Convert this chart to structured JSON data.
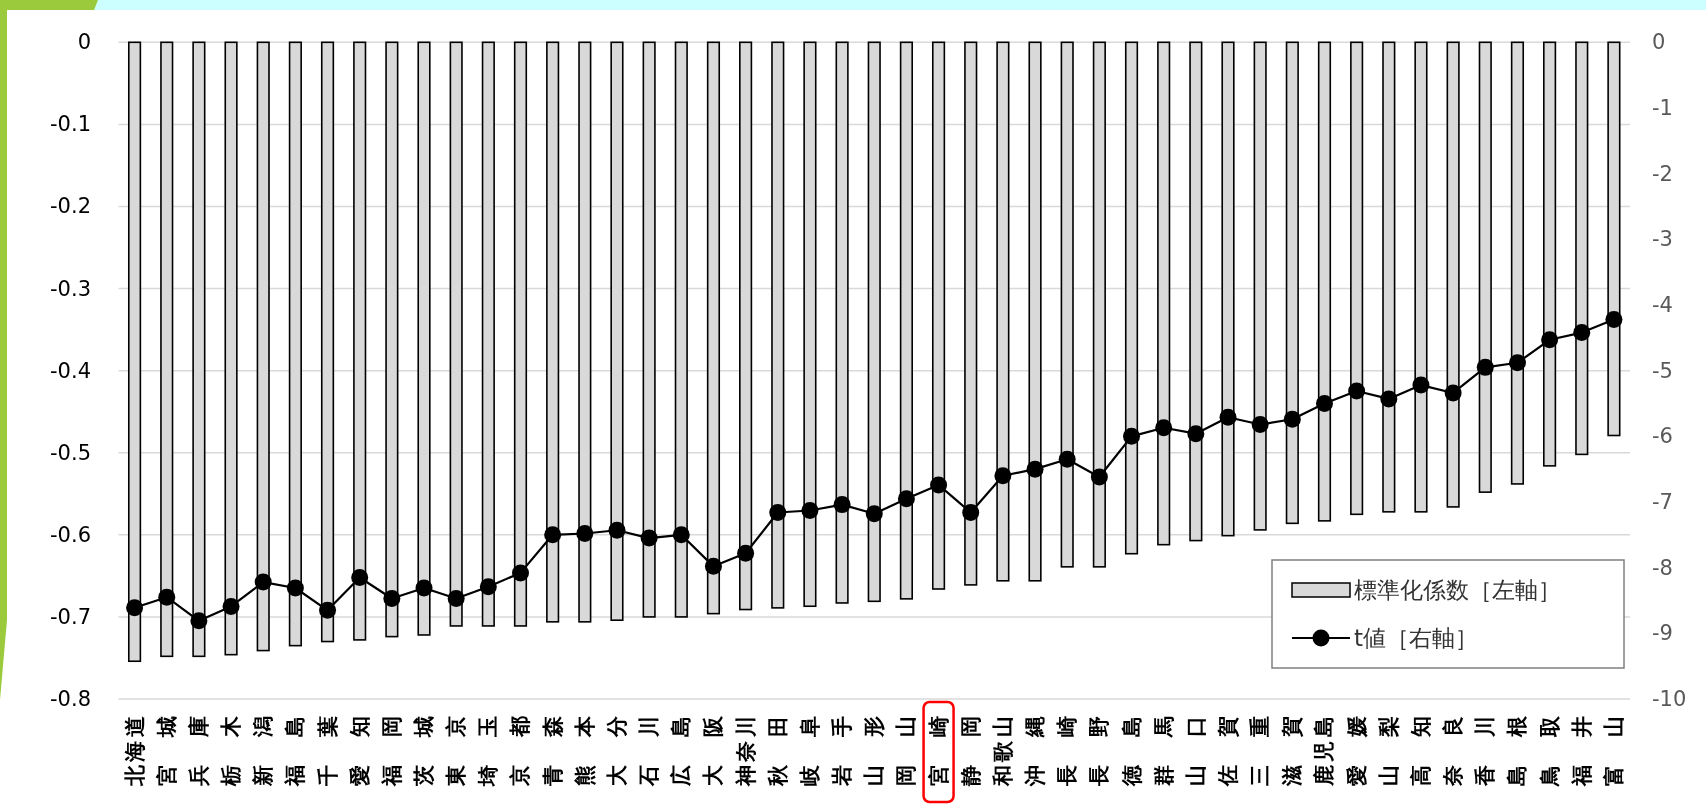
{
  "chart_data": {
    "type": "bar",
    "categories": [
      "北海道",
      "宮城",
      "兵庫",
      "栃木",
      "新潟",
      "福島",
      "千葉",
      "愛知",
      "福岡",
      "茨城",
      "東京",
      "埼玉",
      "京都",
      "青森",
      "熊本",
      "大分",
      "石川",
      "広島",
      "大阪",
      "神奈川",
      "秋田",
      "岐阜",
      "岩手",
      "山形",
      "岡山",
      "宮崎",
      "静岡",
      "和歌山",
      "沖縄",
      "長崎",
      "長野",
      "徳島",
      "群馬",
      "山口",
      "佐賀",
      "三重",
      "滋賀",
      "鹿児島",
      "愛媛",
      "山梨",
      "高知",
      "奈良",
      "香川",
      "島根",
      "鳥取",
      "福井",
      "富山"
    ],
    "series": [
      {
        "name": "標準化係数［左軸］",
        "color": "#d9d9d9",
        "values": [
          -0.754,
          -0.748,
          -0.748,
          -0.746,
          -0.741,
          -0.735,
          -0.73,
          -0.728,
          -0.724,
          -0.722,
          -0.711,
          -0.711,
          -0.711,
          -0.706,
          -0.706,
          -0.704,
          -0.7,
          -0.7,
          -0.696,
          -0.691,
          -0.689,
          -0.687,
          -0.683,
          -0.681,
          -0.678,
          -0.666,
          -0.661,
          -0.656,
          -0.656,
          -0.639,
          -0.639,
          -0.623,
          -0.612,
          -0.607,
          -0.601,
          -0.594,
          -0.586,
          -0.583,
          -0.575,
          -0.572,
          -0.572,
          -0.566,
          -0.548,
          -0.538,
          -0.516,
          -0.502,
          -0.479
        ]
      },
      {
        "name": "t値［右軸］",
        "type": "line",
        "color": "#000000",
        "axis": "y2",
        "values": [
          -8.61,
          -8.45,
          -8.81,
          -8.59,
          -8.22,
          -8.31,
          -8.65,
          -8.15,
          -8.47,
          -8.31,
          -8.47,
          -8.29,
          -8.08,
          -7.5,
          -7.48,
          -7.43,
          -7.55,
          -7.5,
          -7.98,
          -7.78,
          -7.16,
          -7.13,
          -7.04,
          -7.18,
          -6.95,
          -6.74,
          -7.16,
          -6.6,
          -6.5,
          -6.35,
          -6.62,
          -6.0,
          -5.87,
          -5.96,
          -5.71,
          -5.82,
          -5.74,
          -5.5,
          -5.31,
          -5.43,
          -5.22,
          -5.34,
          -4.95,
          -4.88,
          -4.53,
          -4.42,
          -4.22
        ]
      }
    ],
    "ylim": [
      -0.8,
      0
    ],
    "yticks": [
      0,
      -0.1,
      -0.2,
      -0.3,
      -0.4,
      -0.5,
      -0.6,
      -0.7,
      -0.8
    ],
    "y2lim": [
      -10,
      0
    ],
    "y2ticks": [
      0,
      -1,
      -2,
      -3,
      -4,
      -5,
      -6,
      -7,
      -8,
      -9,
      -10
    ],
    "grid": "y",
    "legend": "bottom right",
    "marker": "circle",
    "line_style": "solid"
  }
}
